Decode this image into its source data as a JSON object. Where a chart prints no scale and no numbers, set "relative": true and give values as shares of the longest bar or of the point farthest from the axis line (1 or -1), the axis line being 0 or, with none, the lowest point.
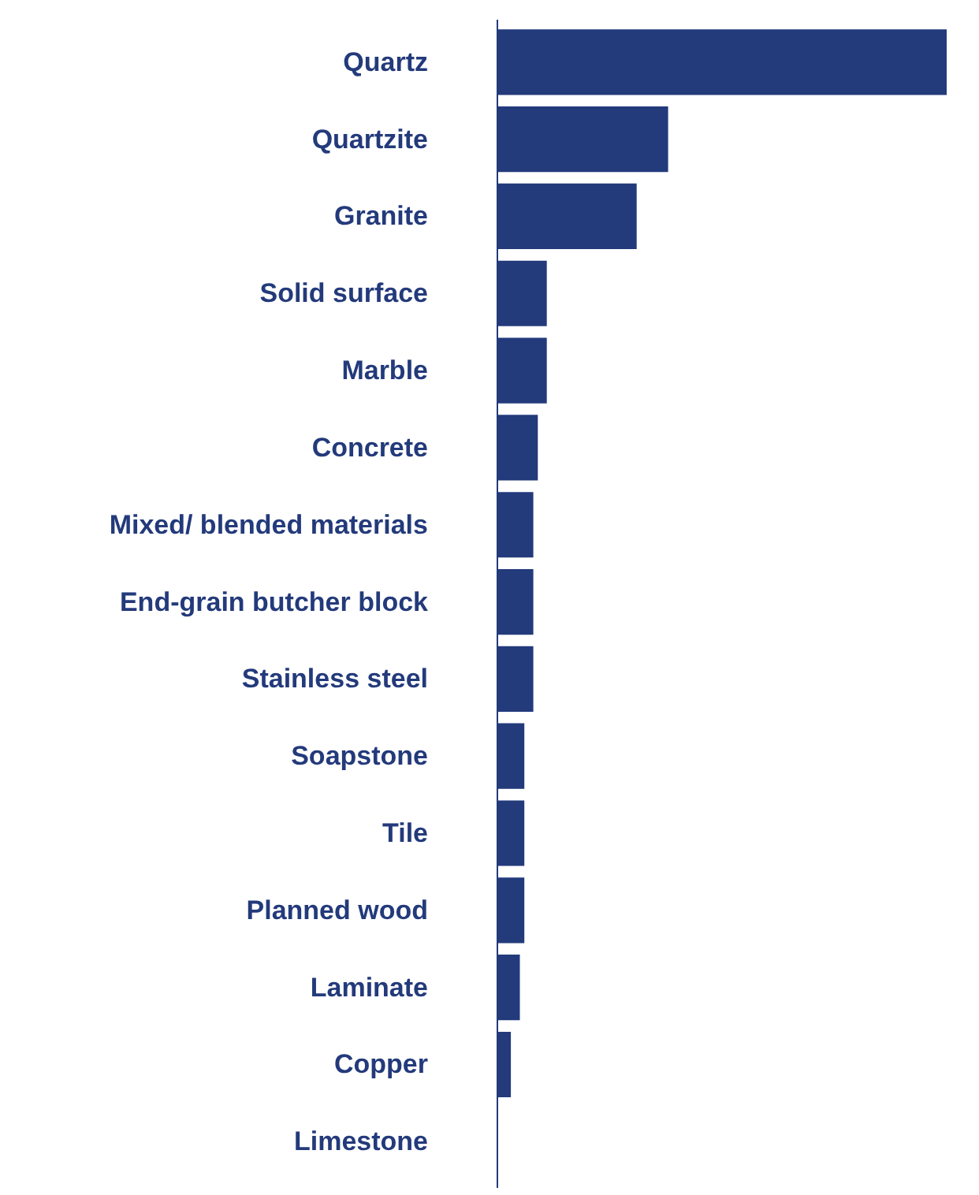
{
  "chart_data": {
    "type": "bar",
    "orientation": "horizontal",
    "relative": true,
    "color": "#233a7b",
    "grid": false,
    "categories": [
      "Quartz",
      "Quartzite",
      "Granite",
      "Solid surface",
      "Marble",
      "Concrete",
      "Mixed/ blended materials",
      "End-grain butcher block",
      "Stainless steel",
      "Soapstone",
      "Tile",
      "Planned wood",
      "Laminate",
      "Copper",
      "Limestone"
    ],
    "values": [
      1,
      0.38,
      0.31,
      0.11,
      0.11,
      0.09,
      0.08,
      0.08,
      0.08,
      0.06,
      0.06,
      0.06,
      0.05,
      0.03,
      0
    ]
  }
}
